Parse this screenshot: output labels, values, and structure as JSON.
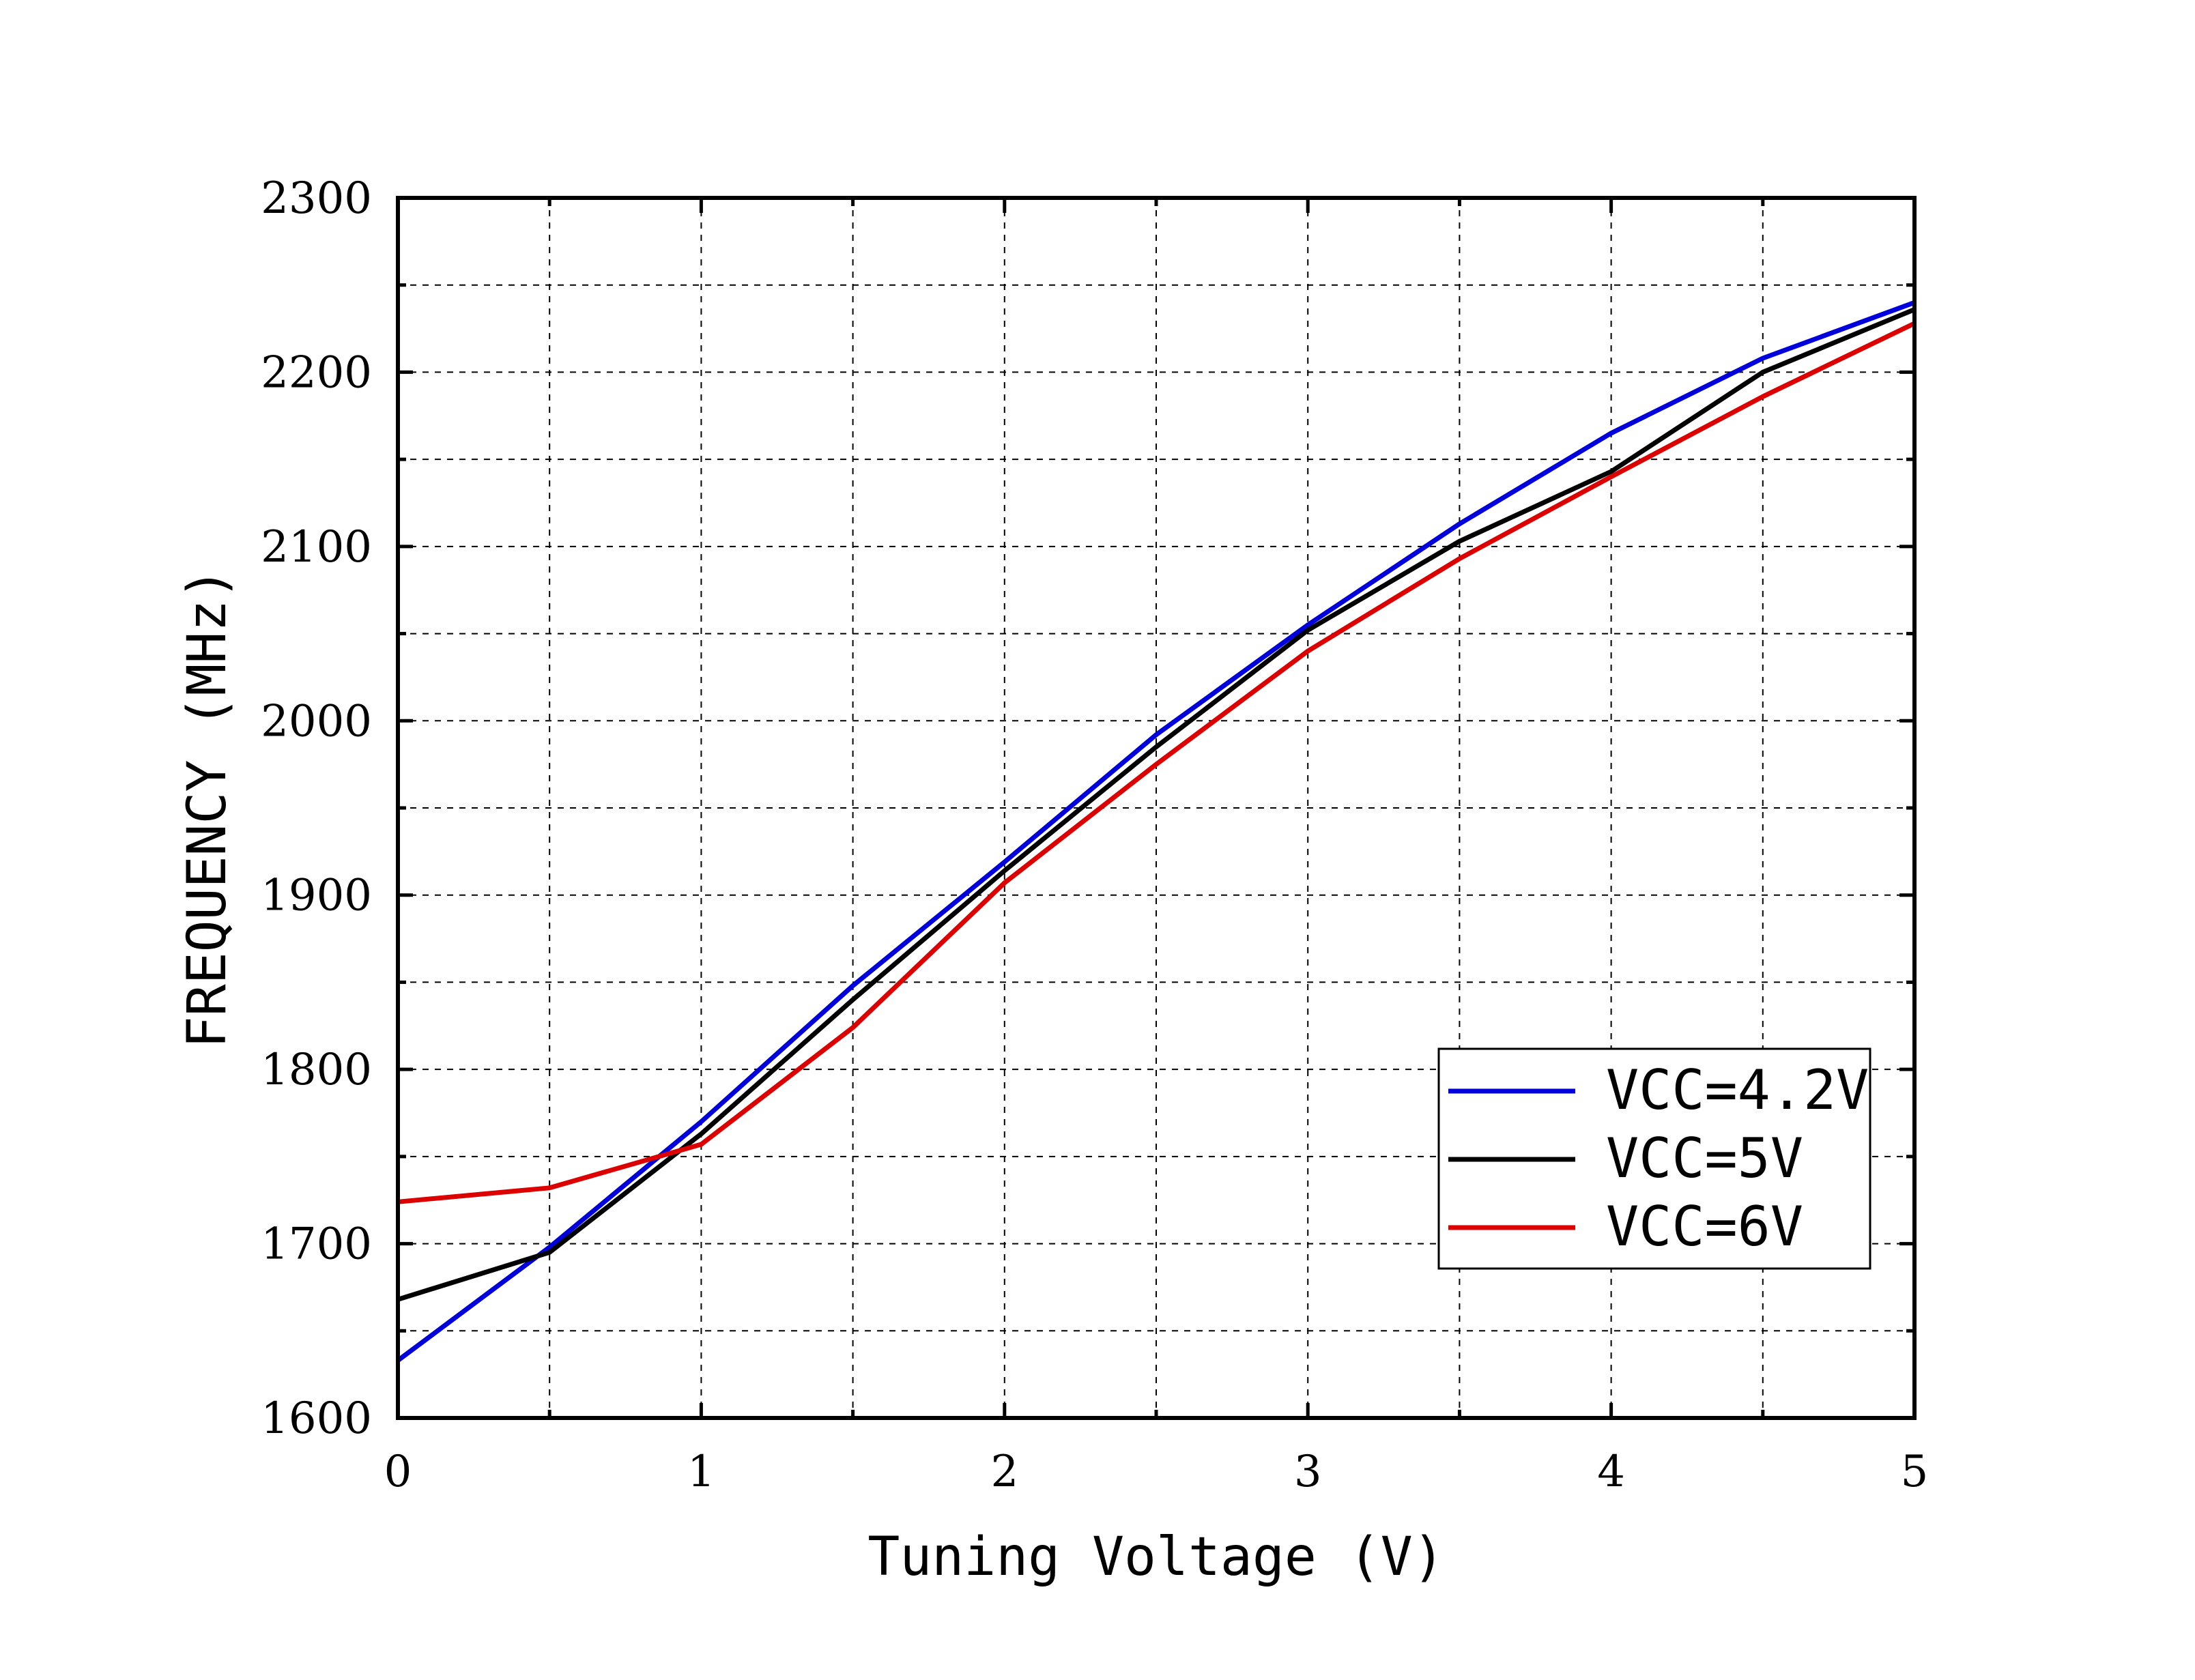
{
  "chart_data": {
    "type": "line",
    "title": "",
    "xlabel": "Tuning Voltage (V)",
    "ylabel": "FREQUENCY (MHz)",
    "xlim": [
      0,
      5
    ],
    "ylim": [
      1600,
      2300
    ],
    "xticks": [
      0,
      1,
      2,
      3,
      4,
      5
    ],
    "yticks": [
      1600,
      1700,
      1800,
      1900,
      2000,
      2100,
      2200,
      2300
    ],
    "xtick_labels": [
      "0",
      "1",
      "2",
      "3",
      "4",
      "5"
    ],
    "ytick_labels": [
      "1600",
      "1700",
      "1800",
      "1900",
      "2000",
      "2100",
      "2200",
      "2300"
    ],
    "grid": true,
    "legend_position": "bottom-right",
    "x": [
      0,
      0.5,
      1,
      1.5,
      2,
      2.5,
      3,
      3.5,
      4,
      4.5,
      5
    ],
    "series": [
      {
        "name": "VCC=4.2V",
        "color": "#0000dd",
        "values": [
          1633,
          1698,
          1770,
          1848,
          1919,
          1992,
          2055,
          2113,
          2165,
          2208,
          2240
        ]
      },
      {
        "name": "VCC=5V",
        "color": "#000000",
        "values": [
          1668,
          1695,
          1763,
          1840,
          1914,
          1985,
          2052,
          2103,
          2143,
          2200,
          2236
        ]
      },
      {
        "name": "VCC=6V",
        "color": "#dd0000",
        "values": [
          1724,
          1732,
          1757,
          1824,
          1907,
          1975,
          2040,
          2093,
          2140,
          2186,
          2228
        ]
      }
    ]
  }
}
